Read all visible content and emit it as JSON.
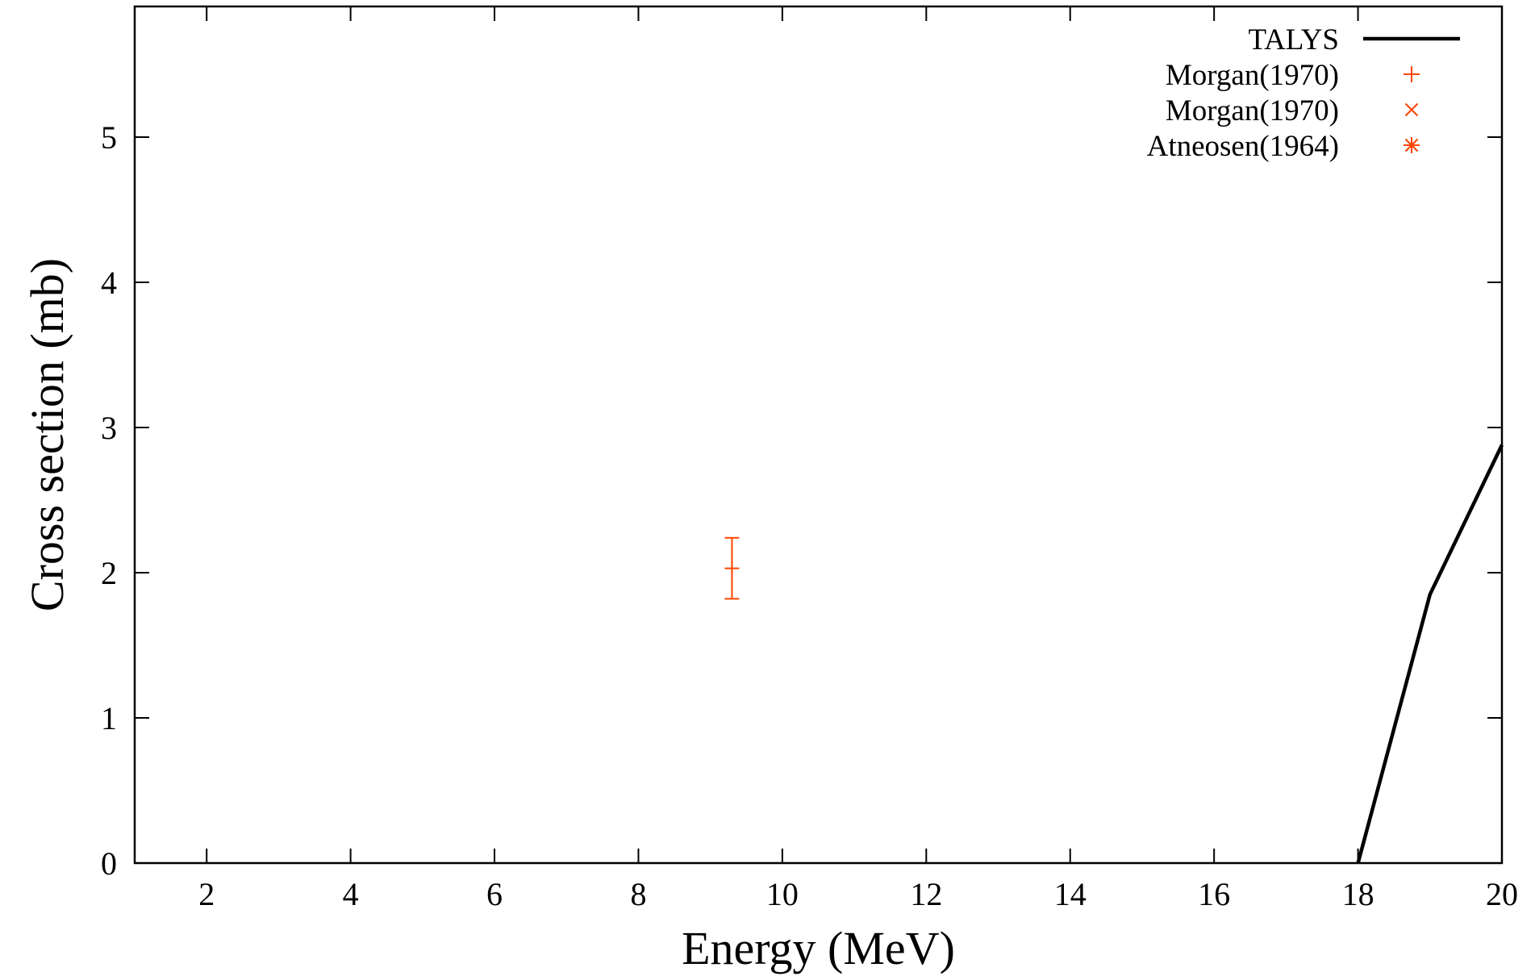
{
  "chart_data": {
    "type": "line",
    "xlabel": "Energy (MeV)",
    "ylabel": "Cross section (mb)",
    "xlim": [
      1,
      20
    ],
    "ylim": [
      0,
      5.9
    ],
    "x_ticks": [
      2,
      4,
      6,
      8,
      10,
      12,
      14,
      16,
      18,
      20
    ],
    "y_ticks": [
      0,
      1,
      2,
      3,
      4,
      5
    ],
    "grid": false,
    "legend_position": "top-right",
    "series": [
      {
        "name": "TALYS",
        "kind": "line",
        "color": "#000000",
        "points": [
          [
            18.0,
            0.0
          ],
          [
            19.0,
            1.85
          ],
          [
            20.0,
            2.88
          ]
        ]
      },
      {
        "name": "Morgan(1970)",
        "kind": "marker",
        "marker": "plus",
        "color": "#ff4500",
        "points": [
          [
            9.3,
            2.03
          ]
        ],
        "errors": [
          0.21
        ]
      },
      {
        "name": "Morgan(1970)",
        "kind": "marker",
        "marker": "cross",
        "color": "#ff4500",
        "points": []
      },
      {
        "name": "Atneosen(1964)",
        "kind": "marker",
        "marker": "asterisk",
        "color": "#ff4500",
        "points": []
      }
    ]
  }
}
